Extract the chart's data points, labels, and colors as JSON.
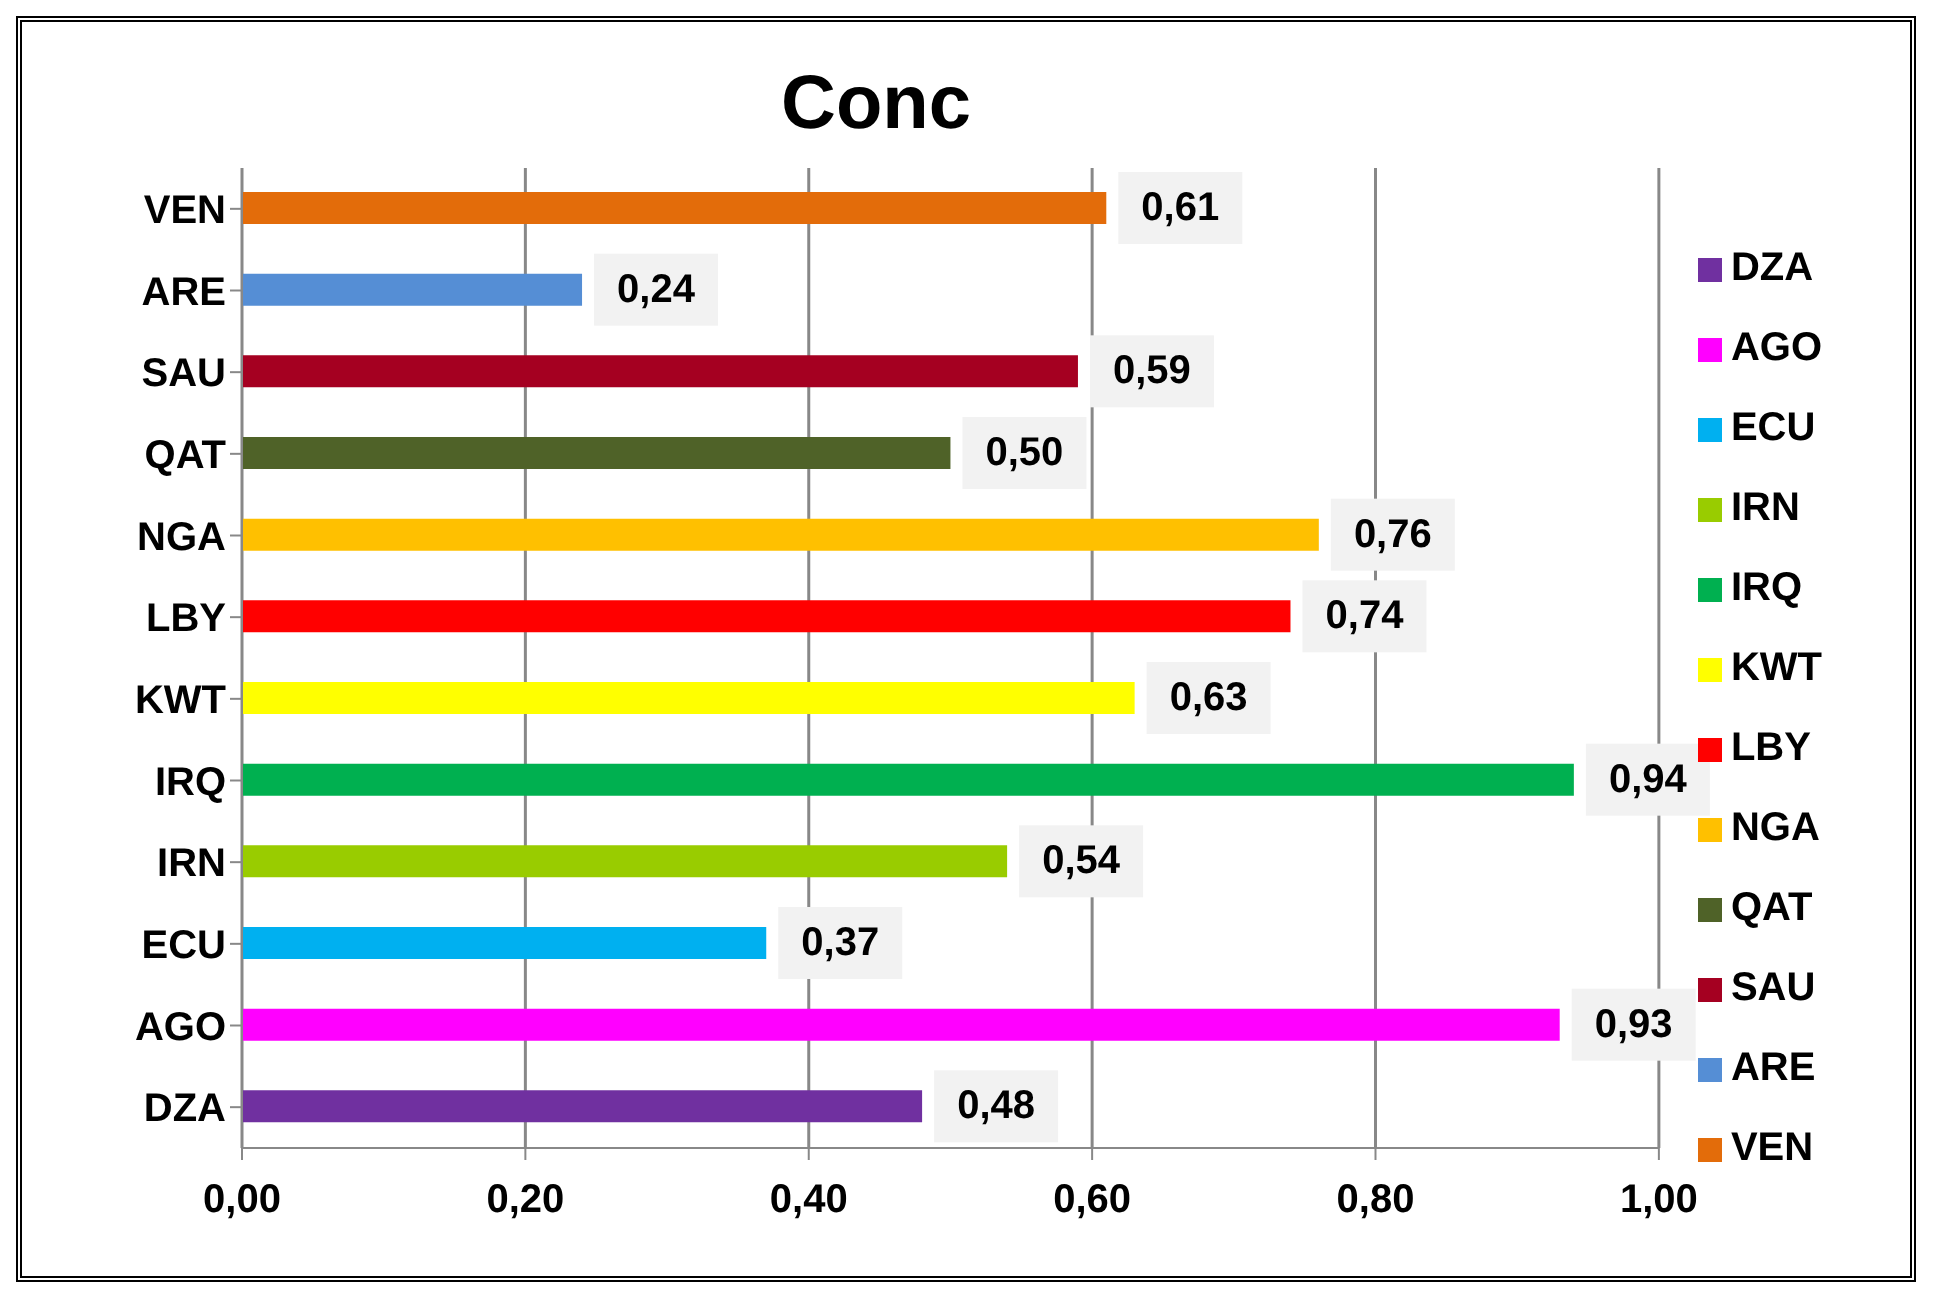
{
  "chart_data": {
    "type": "bar",
    "orientation": "horizontal",
    "stacked": true,
    "title": "Conc",
    "categories": [
      "VEN",
      "ARE",
      "SAU",
      "QAT",
      "NGA",
      "LBY",
      "KWT",
      "IRQ",
      "IRN",
      "ECU",
      "AGO",
      "DZA"
    ],
    "series": [
      {
        "name": "DZA",
        "color": "#7030a0",
        "values": [
          null,
          null,
          null,
          null,
          null,
          null,
          null,
          null,
          null,
          null,
          null,
          0.48
        ],
        "value_labels": [
          null,
          null,
          null,
          null,
          null,
          null,
          null,
          null,
          null,
          null,
          null,
          "0,48"
        ]
      },
      {
        "name": "AGO",
        "color": "#ff00ff",
        "values": [
          null,
          null,
          null,
          null,
          null,
          null,
          null,
          null,
          null,
          null,
          0.93,
          null
        ],
        "value_labels": [
          null,
          null,
          null,
          null,
          null,
          null,
          null,
          null,
          null,
          null,
          "0,93",
          null
        ]
      },
      {
        "name": "ECU",
        "color": "#00b0f0",
        "values": [
          null,
          null,
          null,
          null,
          null,
          null,
          null,
          null,
          null,
          0.37,
          null,
          null
        ],
        "value_labels": [
          null,
          null,
          null,
          null,
          null,
          null,
          null,
          null,
          null,
          "0,37",
          null,
          null
        ]
      },
      {
        "name": "IRN",
        "color": "#99cc00",
        "values": [
          null,
          null,
          null,
          null,
          null,
          null,
          null,
          null,
          0.54,
          null,
          null,
          null
        ],
        "value_labels": [
          null,
          null,
          null,
          null,
          null,
          null,
          null,
          null,
          "0,54",
          null,
          null,
          null
        ]
      },
      {
        "name": "IRQ",
        "color": "#00b050",
        "values": [
          null,
          null,
          null,
          null,
          null,
          null,
          null,
          0.94,
          null,
          null,
          null,
          null
        ],
        "value_labels": [
          null,
          null,
          null,
          null,
          null,
          null,
          null,
          "0,94",
          null,
          null,
          null,
          null
        ]
      },
      {
        "name": "KWT",
        "color": "#ffff00",
        "values": [
          null,
          null,
          null,
          null,
          null,
          null,
          0.63,
          null,
          null,
          null,
          null,
          null
        ],
        "value_labels": [
          null,
          null,
          null,
          null,
          null,
          null,
          "0,63",
          null,
          null,
          null,
          null,
          null
        ]
      },
      {
        "name": "LBY",
        "color": "#ff0000",
        "values": [
          null,
          null,
          null,
          null,
          null,
          0.74,
          null,
          null,
          null,
          null,
          null,
          null
        ],
        "value_labels": [
          null,
          null,
          null,
          null,
          null,
          "0,74",
          null,
          null,
          null,
          null,
          null,
          null
        ]
      },
      {
        "name": "NGA",
        "color": "#ffc000",
        "values": [
          null,
          null,
          null,
          null,
          0.76,
          null,
          null,
          null,
          null,
          null,
          null,
          null
        ],
        "value_labels": [
          null,
          null,
          null,
          null,
          "0,76",
          null,
          null,
          null,
          null,
          null,
          null,
          null
        ]
      },
      {
        "name": "QAT",
        "color": "#4f6228",
        "values": [
          null,
          null,
          null,
          0.5,
          null,
          null,
          null,
          null,
          null,
          null,
          null,
          null
        ],
        "value_labels": [
          null,
          null,
          null,
          "0,50",
          null,
          null,
          null,
          null,
          null,
          null,
          null,
          null
        ]
      },
      {
        "name": "SAU",
        "color": "#a50021",
        "values": [
          null,
          null,
          0.59,
          null,
          null,
          null,
          null,
          null,
          null,
          null,
          null,
          null
        ],
        "value_labels": [
          null,
          null,
          "0,59",
          null,
          null,
          null,
          null,
          null,
          null,
          null,
          null,
          null
        ]
      },
      {
        "name": "ARE",
        "color": "#558ed5",
        "values": [
          null,
          0.24,
          null,
          null,
          null,
          null,
          null,
          null,
          null,
          null,
          null,
          null
        ],
        "value_labels": [
          null,
          "0,24",
          null,
          null,
          null,
          null,
          null,
          null,
          null,
          null,
          null,
          null
        ]
      },
      {
        "name": "VEN",
        "color": "#e36c0a",
        "values": [
          0.61,
          null,
          null,
          null,
          null,
          null,
          null,
          null,
          null,
          null,
          null,
          null
        ],
        "value_labels": [
          "0,61",
          null,
          null,
          null,
          null,
          null,
          null,
          null,
          null,
          null,
          null,
          null
        ]
      }
    ],
    "xlim": [
      0,
      1
    ],
    "xticks": [
      {
        "value": 0,
        "label": "0,00"
      },
      {
        "value": 0.2,
        "label": "0,20"
      },
      {
        "value": 0.4,
        "label": "0,40"
      },
      {
        "value": 0.6,
        "label": "0,60"
      },
      {
        "value": 0.8,
        "label": "0,80"
      },
      {
        "value": 1,
        "label": "1,00"
      }
    ],
    "grid": "x",
    "legend": "right"
  }
}
